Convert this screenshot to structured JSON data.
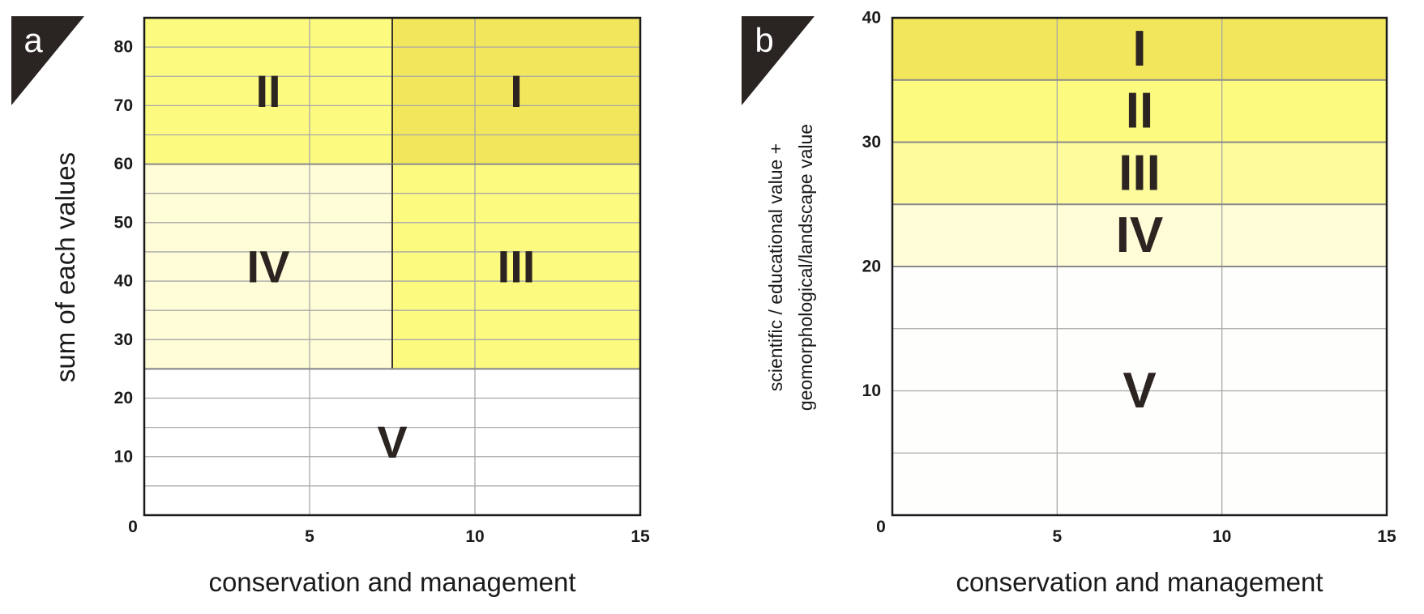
{
  "chart_data": [
    {
      "panel": "a",
      "type": "heatmap",
      "xlabel": "conservation and management",
      "ylabel": "sum of each values",
      "xlim": [
        0,
        15
      ],
      "ylim": [
        0,
        85
      ],
      "xticks": [
        0,
        5,
        10,
        15
      ],
      "yticks": [
        10,
        20,
        30,
        40,
        50,
        60,
        70,
        80
      ],
      "origin_label": "0",
      "grid": true,
      "zones": [
        {
          "label": "II",
          "x": [
            0,
            7.5
          ],
          "y": [
            60,
            85
          ],
          "color": "#fdfa80"
        },
        {
          "label": "I",
          "x": [
            7.5,
            15
          ],
          "y": [
            60,
            85
          ],
          "color": "#f2e65c"
        },
        {
          "label": "IV",
          "x": [
            0,
            7.5
          ],
          "y": [
            25,
            60
          ],
          "color": "#fffcd8"
        },
        {
          "label": "III",
          "x": [
            7.5,
            15
          ],
          "y": [
            25,
            60
          ],
          "color": "#fdfa80"
        },
        {
          "label": "V",
          "x": [
            0,
            15
          ],
          "y": [
            0,
            25
          ],
          "color": "#ffffff"
        }
      ]
    },
    {
      "panel": "b",
      "type": "heatmap",
      "xlabel": "conservation and management",
      "ylabel": [
        "scientific / educational value +",
        "geomorphological/landscape value"
      ],
      "xlim": [
        0,
        15
      ],
      "ylim": [
        0,
        40
      ],
      "xticks": [
        0,
        5,
        10,
        15
      ],
      "yticks": [
        10,
        20,
        30,
        40
      ],
      "origin_label": "0",
      "grid": true,
      "zones": [
        {
          "label": "I",
          "x": [
            0,
            15
          ],
          "y": [
            35,
            40
          ],
          "color": "#f2e65c"
        },
        {
          "label": "II",
          "x": [
            0,
            15
          ],
          "y": [
            30,
            35
          ],
          "color": "#fdfa80"
        },
        {
          "label": "III",
          "x": [
            0,
            15
          ],
          "y": [
            25,
            30
          ],
          "color": "#fdfb9c"
        },
        {
          "label": "IV",
          "x": [
            0,
            15
          ],
          "y": [
            20,
            25
          ],
          "color": "#fffcd8"
        },
        {
          "label": "V",
          "x": [
            0,
            15
          ],
          "y": [
            0,
            20
          ],
          "color": "#fefefc"
        }
      ]
    }
  ]
}
